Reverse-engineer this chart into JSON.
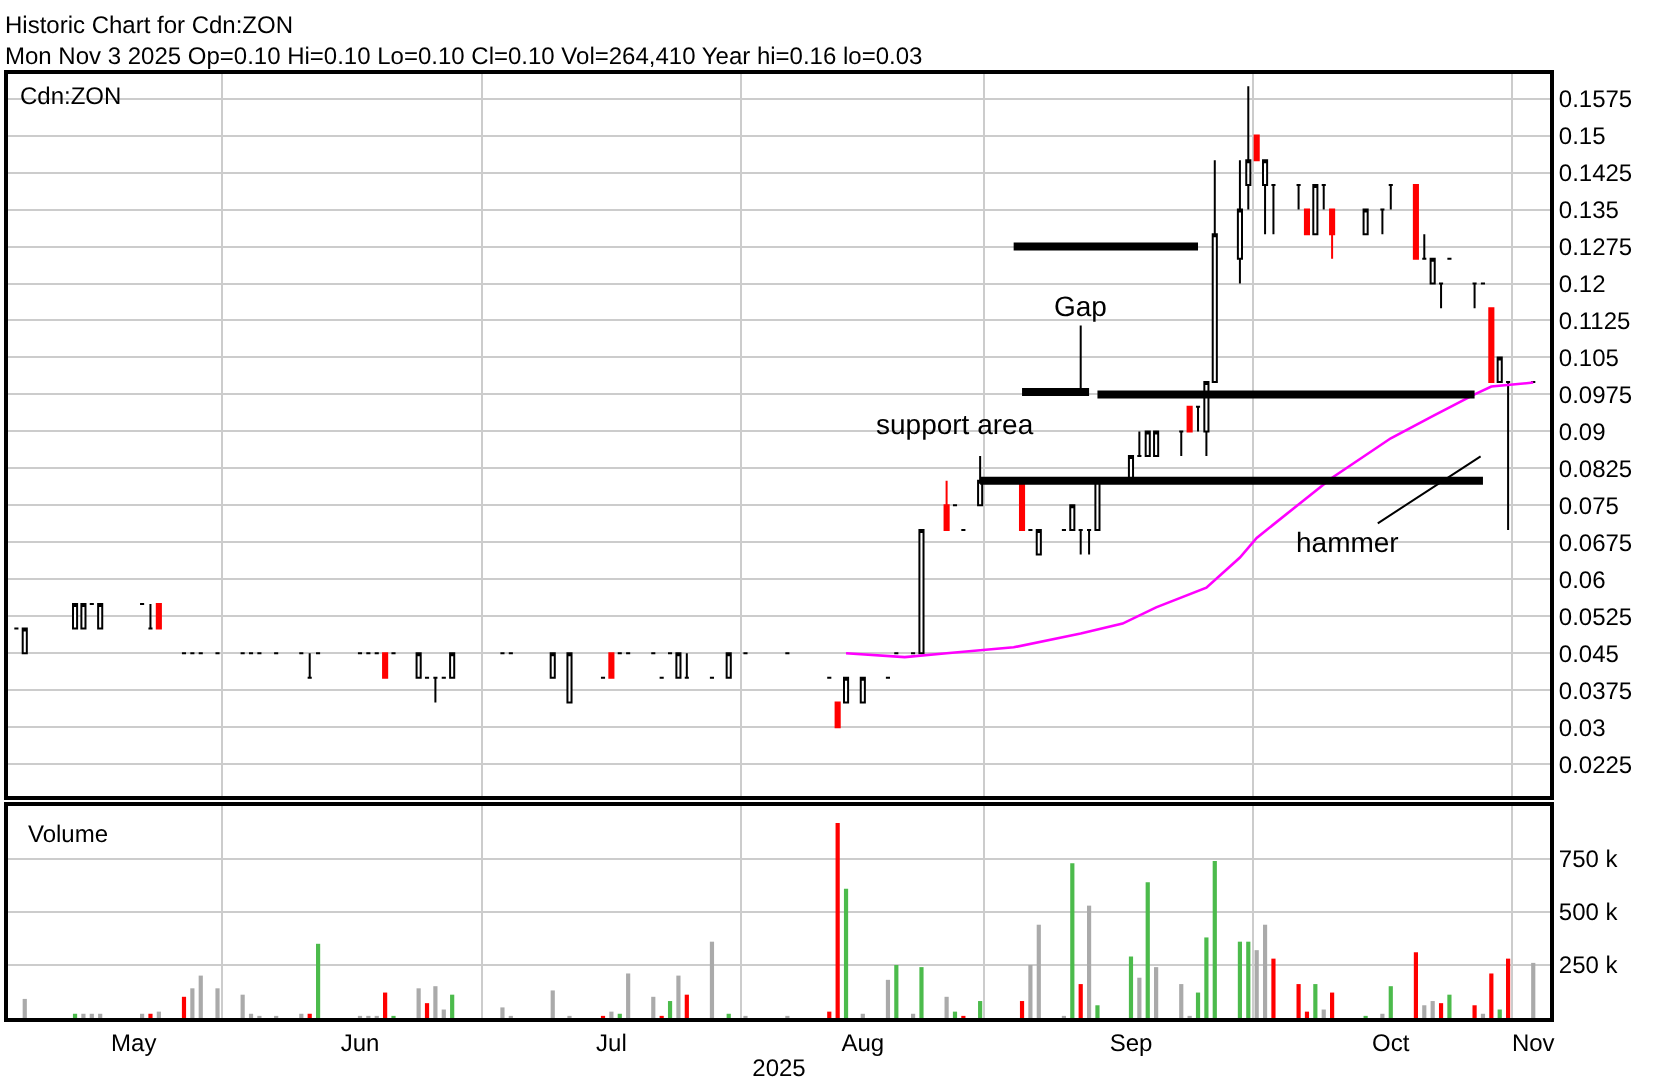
{
  "chart_data": [
    {
      "type": "candlestick",
      "title": "Historic Chart for Cdn:ZON",
      "subtitle": "Mon Nov 3 2025 Op=0.10 Hi=0.10 Lo=0.10 Cl=0.10 Vol=264,410 Year hi=0.16 lo=0.03",
      "x": [
        "2025-05-06",
        "2025-05-07",
        "2025-05-13",
        "2025-05-14",
        "2025-05-15",
        "2025-05-16",
        "2025-05-21",
        "2025-05-22",
        "2025-05-23",
        "2025-05-26",
        "2025-05-27",
        "2025-05-28",
        "2025-05-30",
        "2025-06-02",
        "2025-06-03",
        "2025-06-04",
        "2025-06-06",
        "2025-06-09",
        "2025-06-10",
        "2025-06-11",
        "2025-06-16",
        "2025-06-17",
        "2025-06-18",
        "2025-06-19",
        "2025-06-20",
        "2025-06-23",
        "2025-06-24",
        "2025-06-25",
        "2025-06-26",
        "2025-06-27",
        "2025-07-03",
        "2025-07-04",
        "2025-07-09",
        "2025-07-11",
        "2025-07-15",
        "2025-07-16",
        "2025-07-17",
        "2025-07-18",
        "2025-07-21",
        "2025-07-22",
        "2025-07-23",
        "2025-07-24",
        "2025-07-25",
        "2025-07-28",
        "2025-07-30",
        "2025-08-01",
        "2025-08-06",
        "2025-08-11",
        "2025-08-12",
        "2025-08-13",
        "2025-08-15",
        "2025-08-18",
        "2025-08-19",
        "2025-08-21",
        "2025-08-22",
        "2025-08-25",
        "2025-08-26",
        "2025-08-27",
        "2025-08-29",
        "2025-09-03",
        "2025-09-04",
        "2025-09-05",
        "2025-09-08",
        "2025-09-09",
        "2025-09-10",
        "2025-09-11",
        "2025-09-12",
        "2025-09-16",
        "2025-09-17",
        "2025-09-18",
        "2025-09-19",
        "2025-09-22",
        "2025-09-23",
        "2025-09-24",
        "2025-09-25",
        "2025-09-26",
        "2025-09-29",
        "2025-09-30",
        "2025-10-01",
        "2025-10-02",
        "2025-10-03",
        "2025-10-06",
        "2025-10-07",
        "2025-10-08",
        "2025-10-09",
        "2025-10-10",
        "2025-10-14",
        "2025-10-16",
        "2025-10-17",
        "2025-10-20",
        "2025-10-21",
        "2025-10-22",
        "2025-10-23",
        "2025-10-24",
        "2025-10-27",
        "2025-10-28",
        "2025-10-29",
        "2025-10-30",
        "2025-10-31",
        "2025-11-03"
      ],
      "ohlc": [
        [
          0.05,
          0.05,
          0.05,
          0.05
        ],
        [
          0.045,
          0.05,
          0.045,
          0.05
        ],
        [
          0.05,
          0.055,
          0.05,
          0.055
        ],
        [
          0.05,
          0.055,
          0.05,
          0.055
        ],
        [
          0.055,
          0.055,
          0.055,
          0.055
        ],
        [
          0.05,
          0.055,
          0.05,
          0.055
        ],
        [
          0.055,
          0.055,
          0.055,
          0.055
        ],
        [
          0.05,
          0.055,
          0.05,
          0.05
        ],
        [
          0.055,
          0.055,
          0.05,
          0.05
        ],
        [
          0.045,
          0.045,
          0.045,
          0.045
        ],
        [
          0.045,
          0.045,
          0.045,
          0.045
        ],
        [
          0.045,
          0.045,
          0.045,
          0.045
        ],
        [
          0.045,
          0.045,
          0.045,
          0.045
        ],
        [
          0.045,
          0.045,
          0.045,
          0.045
        ],
        [
          0.045,
          0.045,
          0.045,
          0.045
        ],
        [
          0.045,
          0.045,
          0.045,
          0.045
        ],
        [
          0.045,
          0.045,
          0.045,
          0.045
        ],
        [
          0.045,
          0.045,
          0.045,
          0.045
        ],
        [
          0.04,
          0.045,
          0.04,
          0.04
        ],
        [
          0.045,
          0.045,
          0.045,
          0.045
        ],
        [
          0.045,
          0.045,
          0.045,
          0.045
        ],
        [
          0.045,
          0.045,
          0.045,
          0.045
        ],
        [
          0.045,
          0.045,
          0.045,
          0.045
        ],
        [
          0.045,
          0.045,
          0.04,
          0.04
        ],
        [
          0.045,
          0.045,
          0.045,
          0.045
        ],
        [
          0.04,
          0.045,
          0.04,
          0.045
        ],
        [
          0.04,
          0.04,
          0.04,
          0.04
        ],
        [
          0.04,
          0.04,
          0.035,
          0.04
        ],
        [
          0.04,
          0.04,
          0.04,
          0.04
        ],
        [
          0.04,
          0.045,
          0.04,
          0.045
        ],
        [
          0.045,
          0.045,
          0.045,
          0.045
        ],
        [
          0.045,
          0.045,
          0.045,
          0.045
        ],
        [
          0.04,
          0.045,
          0.04,
          0.045
        ],
        [
          0.035,
          0.045,
          0.035,
          0.045
        ],
        [
          0.04,
          0.04,
          0.04,
          0.04
        ],
        [
          0.045,
          0.045,
          0.04,
          0.04
        ],
        [
          0.045,
          0.045,
          0.045,
          0.045
        ],
        [
          0.045,
          0.045,
          0.045,
          0.045
        ],
        [
          0.045,
          0.045,
          0.045,
          0.045
        ],
        [
          0.04,
          0.04,
          0.04,
          0.04
        ],
        [
          0.045,
          0.045,
          0.045,
          0.045
        ],
        [
          0.04,
          0.045,
          0.04,
          0.045
        ],
        [
          0.04,
          0.045,
          0.04,
          0.04
        ],
        [
          0.04,
          0.04,
          0.04,
          0.04
        ],
        [
          0.04,
          0.045,
          0.04,
          0.045
        ],
        [
          0.045,
          0.045,
          0.045,
          0.045
        ],
        [
          0.045,
          0.045,
          0.045,
          0.045
        ],
        [
          0.04,
          0.04,
          0.04,
          0.04
        ],
        [
          0.035,
          0.035,
          0.03,
          0.03
        ],
        [
          0.035,
          0.04,
          0.035,
          0.04
        ],
        [
          0.035,
          0.04,
          0.035,
          0.04
        ],
        [
          0.04,
          0.04,
          0.04,
          0.04
        ],
        [
          0.045,
          0.045,
          0.045,
          0.045
        ],
        [
          0.045,
          0.045,
          0.045,
          0.045
        ],
        [
          0.045,
          0.07,
          0.045,
          0.07
        ],
        [
          0.075,
          0.08,
          0.07,
          0.07
        ],
        [
          0.075,
          0.075,
          0.075,
          0.075
        ],
        [
          0.07,
          0.07,
          0.07,
          0.07
        ],
        [
          0.075,
          0.085,
          0.075,
          0.08
        ],
        [
          0.08,
          0.08,
          0.07,
          0.07
        ],
        [
          0.07,
          0.07,
          0.07,
          0.07
        ],
        [
          0.065,
          0.07,
          0.065,
          0.07
        ],
        [
          0.07,
          0.07,
          0.07,
          0.07
        ],
        [
          0.07,
          0.075,
          0.07,
          0.075
        ],
        [
          0.07,
          0.07,
          0.065,
          0.07
        ],
        [
          0.07,
          0.07,
          0.065,
          0.07
        ],
        [
          0.07,
          0.08,
          0.07,
          0.08
        ],
        [
          0.08,
          0.085,
          0.08,
          0.085
        ],
        [
          0.085,
          0.09,
          0.085,
          0.085
        ],
        [
          0.085,
          0.09,
          0.085,
          0.09
        ],
        [
          0.085,
          0.09,
          0.085,
          0.09
        ],
        [
          0.09,
          0.09,
          0.085,
          0.09
        ],
        [
          0.095,
          0.095,
          0.09,
          0.09
        ],
        [
          0.095,
          0.095,
          0.09,
          0.095
        ],
        [
          0.09,
          0.1,
          0.085,
          0.1
        ],
        [
          0.1,
          0.145,
          0.1,
          0.13
        ],
        [
          0.125,
          0.145,
          0.12,
          0.135
        ],
        [
          0.14,
          0.16,
          0.135,
          0.145
        ],
        [
          0.15,
          0.15,
          0.145,
          0.145
        ],
        [
          0.14,
          0.145,
          0.13,
          0.145
        ],
        [
          0.14,
          0.14,
          0.13,
          0.14
        ],
        [
          0.14,
          0.14,
          0.135,
          0.14
        ],
        [
          0.135,
          0.135,
          0.13,
          0.13
        ],
        [
          0.13,
          0.14,
          0.13,
          0.14
        ],
        [
          0.14,
          0.14,
          0.135,
          0.14
        ],
        [
          0.135,
          0.135,
          0.125,
          0.13
        ],
        [
          0.13,
          0.135,
          0.13,
          0.135
        ],
        [
          0.135,
          0.135,
          0.13,
          0.135
        ],
        [
          0.14,
          0.14,
          0.135,
          0.14
        ],
        [
          0.14,
          0.14,
          0.125,
          0.125
        ],
        [
          0.125,
          0.13,
          0.125,
          0.125
        ],
        [
          0.12,
          0.125,
          0.12,
          0.125
        ],
        [
          0.12,
          0.12,
          0.115,
          0.12
        ],
        [
          0.125,
          0.125,
          0.125,
          0.125
        ],
        [
          0.12,
          0.12,
          0.115,
          0.12
        ],
        [
          0.12,
          0.12,
          0.12,
          0.12
        ],
        [
          0.115,
          0.115,
          0.1,
          0.1
        ],
        [
          0.1,
          0.105,
          0.1,
          0.105
        ],
        [
          0.1,
          0.1,
          0.07,
          0.1
        ],
        [
          0.1,
          0.1,
          0.1,
          0.1
        ]
      ],
      "colors": [
        "#000000",
        "#000000",
        "#000000",
        "#000000",
        "#000000",
        "#000000",
        "#000000",
        "#000000",
        "#ff0000",
        "#000000",
        "#000000",
        "#000000",
        "#000000",
        "#000000",
        "#000000",
        "#000000",
        "#000000",
        "#000000",
        "#000000",
        "#000000",
        "#000000",
        "#000000",
        "#000000",
        "#ff0000",
        "#000000",
        "#000000",
        "#000000",
        "#000000",
        "#000000",
        "#000000",
        "#000000",
        "#000000",
        "#000000",
        "#000000",
        "#000000",
        "#ff0000",
        "#000000",
        "#000000",
        "#000000",
        "#000000",
        "#000000",
        "#000000",
        "#000000",
        "#000000",
        "#000000",
        "#000000",
        "#000000",
        "#000000",
        "#ff0000",
        "#000000",
        "#000000",
        "#000000",
        "#000000",
        "#000000",
        "#000000",
        "#ff0000",
        "#000000",
        "#000000",
        "#000000",
        "#ff0000",
        "#000000",
        "#000000",
        "#000000",
        "#000000",
        "#000000",
        "#000000",
        "#000000",
        "#000000",
        "#000000",
        "#000000",
        "#000000",
        "#000000",
        "#ff0000",
        "#000000",
        "#000000",
        "#000000",
        "#000000",
        "#000000",
        "#ff0000",
        "#000000",
        "#000000",
        "#000000",
        "#ff0000",
        "#000000",
        "#000000",
        "#ff0000",
        "#000000",
        "#000000",
        "#000000",
        "#ff0000",
        "#000000",
        "#000000",
        "#000000",
        "#000000",
        "#000000",
        "#000000",
        "#ff0000",
        "#000000",
        "#000000",
        "#000000"
      ],
      "series": [
        {
          "type": "line",
          "color": "#ff00ff",
          "x": [
            "2025-08-13",
            "2025-08-20",
            "2025-08-25",
            "2025-09-02",
            "2025-09-10",
            "2025-09-15",
            "2025-09-19",
            "2025-09-25",
            "2025-09-29",
            "2025-10-01",
            "2025-10-10",
            "2025-10-17",
            "2025-10-22",
            "2025-10-27",
            "2025-10-29",
            "2025-11-03"
          ],
          "values": [
            0.045,
            0.0442,
            0.045,
            0.0462,
            0.049,
            0.051,
            0.0543,
            0.0583,
            0.0644,
            0.0684,
            0.0806,
            0.0886,
            0.0931,
            0.0975,
            0.0991,
            0.0999
          ]
        },
        {
          "type": "line",
          "color": "#000000",
          "x": [
            "2025-09-02",
            "2025-09-24"
          ],
          "values": [
            0.1275,
            0.1275
          ]
        },
        {
          "type": "line",
          "color": "#000000",
          "x": [
            "2025-09-03",
            "2025-09-11"
          ],
          "values": [
            0.098,
            0.098
          ]
        },
        {
          "type": "line",
          "color": "#000000",
          "x": [
            "2025-09-12",
            "2025-10-27"
          ],
          "values": [
            0.0975,
            0.0975
          ]
        },
        {
          "type": "line",
          "color": "#000000",
          "x": [
            "2025-08-29",
            "2025-10-28"
          ],
          "values": [
            0.08,
            0.08
          ]
        }
      ],
      "annotations": [
        "Cdn:ZON",
        {
          "text": "Gap",
          "x": "2025-09-10",
          "y": 0.0975
        },
        "support area",
        "hammer"
      ],
      "xlim": [
        "2025-05-05",
        "2025-11-05"
      ],
      "xticks": [
        {
          "value": "2025-05-30T12:00",
          "label": null
        },
        {
          "value": "2025-06-30T12:00",
          "label": null
        },
        {
          "value": "2025-07-31T12:00",
          "label": null
        },
        {
          "value": "2025-08-29T12:00",
          "label": null
        },
        {
          "value": "2025-09-30T12:00",
          "label": null
        },
        {
          "value": "2025-10-31T12:00",
          "label": null
        }
      ],
      "ylim": [
        0.016,
        0.1625
      ],
      "yticks": [
        0.0225,
        0.03,
        0.0375,
        0.045,
        0.0525,
        0.06,
        0.0675,
        0.075,
        0.0825,
        0.09,
        0.0975,
        0.105,
        0.1125,
        0.12,
        0.1275,
        0.135,
        0.1425,
        0.15,
        0.1575
      ],
      "grid": true,
      "tick_labels": "y"
    },
    {
      "type": "bar",
      "title": "Volume",
      "xlabel": "2025",
      "x": [
        "2025-05-07",
        "2025-05-13",
        "2025-05-14",
        "2025-05-15",
        "2025-05-16",
        "2025-05-21",
        "2025-05-22",
        "2025-05-23",
        "2025-05-26",
        "2025-05-27",
        "2025-05-28",
        "2025-05-30",
        "2025-06-02",
        "2025-06-03",
        "2025-06-04",
        "2025-06-06",
        "2025-06-09",
        "2025-06-10",
        "2025-06-11",
        "2025-06-16",
        "2025-06-17",
        "2025-06-18",
        "2025-06-19",
        "2025-06-20",
        "2025-06-23",
        "2025-06-24",
        "2025-06-25",
        "2025-06-26",
        "2025-06-27",
        "2025-07-03",
        "2025-07-04",
        "2025-07-09",
        "2025-07-11",
        "2025-07-15",
        "2025-07-16",
        "2025-07-17",
        "2025-07-18",
        "2025-07-21",
        "2025-07-22",
        "2025-07-23",
        "2025-07-24",
        "2025-07-25",
        "2025-07-28",
        "2025-07-30",
        "2025-08-01",
        "2025-08-06",
        "2025-08-11",
        "2025-08-12",
        "2025-08-13",
        "2025-08-15",
        "2025-08-18",
        "2025-08-19",
        "2025-08-21",
        "2025-08-22",
        "2025-08-25",
        "2025-08-26",
        "2025-08-27",
        "2025-08-29",
        "2025-09-03",
        "2025-09-04",
        "2025-09-05",
        "2025-09-08",
        "2025-09-09",
        "2025-09-10",
        "2025-09-11",
        "2025-09-12",
        "2025-09-16",
        "2025-09-17",
        "2025-09-18",
        "2025-09-19",
        "2025-09-22",
        "2025-09-23",
        "2025-09-24",
        "2025-09-25",
        "2025-09-26",
        "2025-09-29",
        "2025-09-30",
        "2025-10-01",
        "2025-10-02",
        "2025-10-03",
        "2025-10-06",
        "2025-10-07",
        "2025-10-08",
        "2025-10-09",
        "2025-10-10",
        "2025-10-14",
        "2025-10-16",
        "2025-10-17",
        "2025-10-20",
        "2025-10-21",
        "2025-10-22",
        "2025-10-23",
        "2025-10-24",
        "2025-10-27",
        "2025-10-28",
        "2025-10-29",
        "2025-10-30",
        "2025-10-31",
        "2025-11-03"
      ],
      "values": [
        90000,
        20000,
        20000,
        20000,
        20000,
        20000,
        20000,
        30000,
        100000,
        140000,
        200000,
        140000,
        110000,
        20000,
        10000,
        10000,
        20000,
        20000,
        350000,
        10000,
        10000,
        10000,
        120000,
        10000,
        140000,
        70000,
        150000,
        40000,
        110000,
        50000,
        10000,
        130000,
        10000,
        10000,
        30000,
        20000,
        210000,
        100000,
        10000,
        80000,
        200000,
        110000,
        360000,
        20000,
        10000,
        10000,
        30000,
        920000,
        610000,
        20000,
        180000,
        250000,
        20000,
        240000,
        100000,
        30000,
        10000,
        80000,
        80000,
        250000,
        440000,
        10000,
        730000,
        160000,
        530000,
        60000,
        290000,
        190000,
        640000,
        240000,
        160000,
        10000,
        120000,
        380000,
        740000,
        360000,
        360000,
        320000,
        440000,
        280000,
        160000,
        30000,
        160000,
        40000,
        120000,
        10000,
        20000,
        150000,
        310000,
        60000,
        80000,
        70000,
        110000,
        60000,
        20000,
        210000,
        40000,
        280000,
        260000
      ],
      "colors": [
        "#aaaaaa",
        "#4cbb4c",
        "#aaaaaa",
        "#aaaaaa",
        "#aaaaaa",
        "#aaaaaa",
        "#ff0000",
        "#aaaaaa",
        "#ff0000",
        "#aaaaaa",
        "#aaaaaa",
        "#aaaaaa",
        "#aaaaaa",
        "#aaaaaa",
        "#aaaaaa",
        "#aaaaaa",
        "#aaaaaa",
        "#ff0000",
        "#4cbb4c",
        "#aaaaaa",
        "#aaaaaa",
        "#aaaaaa",
        "#ff0000",
        "#4cbb4c",
        "#aaaaaa",
        "#ff0000",
        "#aaaaaa",
        "#aaaaaa",
        "#4cbb4c",
        "#aaaaaa",
        "#aaaaaa",
        "#aaaaaa",
        "#aaaaaa",
        "#ff0000",
        "#aaaaaa",
        "#4cbb4c",
        "#aaaaaa",
        "#aaaaaa",
        "#ff0000",
        "#4cbb4c",
        "#aaaaaa",
        "#ff0000",
        "#aaaaaa",
        "#4cbb4c",
        "#aaaaaa",
        "#aaaaaa",
        "#ff0000",
        "#ff0000",
        "#4cbb4c",
        "#aaaaaa",
        "#aaaaaa",
        "#4cbb4c",
        "#aaaaaa",
        "#4cbb4c",
        "#aaaaaa",
        "#4cbb4c",
        "#ff0000",
        "#4cbb4c",
        "#ff0000",
        "#aaaaaa",
        "#aaaaaa",
        "#aaaaaa",
        "#4cbb4c",
        "#ff0000",
        "#aaaaaa",
        "#4cbb4c",
        "#4cbb4c",
        "#aaaaaa",
        "#4cbb4c",
        "#aaaaaa",
        "#aaaaaa",
        "#aaaaaa",
        "#4cbb4c",
        "#4cbb4c",
        "#4cbb4c",
        "#4cbb4c",
        "#4cbb4c",
        "#aaaaaa",
        "#aaaaaa",
        "#ff0000",
        "#ff0000",
        "#ff0000",
        "#4cbb4c",
        "#aaaaaa",
        "#ff0000",
        "#4cbb4c",
        "#aaaaaa",
        "#4cbb4c",
        "#ff0000",
        "#aaaaaa",
        "#aaaaaa",
        "#ff0000",
        "#4cbb4c",
        "#ff0000",
        "#aaaaaa",
        "#ff0000",
        "#4cbb4c",
        "#ff0000",
        "#aaaaaa"
      ],
      "xlim": [
        "2025-05-05",
        "2025-11-05"
      ],
      "xticks": [
        {
          "value": "2025-05-20",
          "label": "May"
        },
        {
          "value": "2025-06-16",
          "label": "Jun"
        },
        {
          "value": "2025-07-16",
          "label": "Jul"
        },
        {
          "value": "2025-08-15",
          "label": "Aug"
        },
        {
          "value": "2025-09-16",
          "label": "Sep"
        },
        {
          "value": "2025-10-17",
          "label": "Oct"
        },
        {
          "value": "2025-11-03",
          "label": "Nov"
        },
        {
          "value": "2025-05-30T12:00",
          "label": null
        },
        {
          "value": "2025-06-30T12:00",
          "label": null
        },
        {
          "value": "2025-07-31T12:00",
          "label": null
        },
        {
          "value": "2025-08-29T12:00",
          "label": null
        },
        {
          "value": "2025-09-30T12:00",
          "label": null
        },
        {
          "value": "2025-10-31T12:00",
          "label": null
        }
      ],
      "ylim": [
        0,
        1000000
      ],
      "yticks": [
        {
          "value": 250000,
          "label": "250 k"
        },
        {
          "value": 500000,
          "label": "500 k"
        },
        {
          "value": 750000,
          "label": "750 k"
        }
      ],
      "grid": true
    }
  ]
}
